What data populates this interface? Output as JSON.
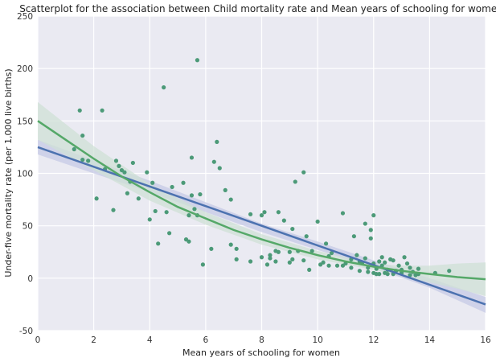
{
  "chart_data": {
    "type": "scatter",
    "title": "Scatterplot for the association between Child mortality rate and Mean years of schooling for women",
    "xlabel": "Mean years of schooling for women",
    "ylabel": "Under-five mortality rate (per 1,000 live births)",
    "xlim": [
      0,
      16
    ],
    "ylim": [
      -50,
      250
    ],
    "x_ticks": [
      0,
      2,
      4,
      6,
      8,
      10,
      12,
      14,
      16
    ],
    "y_ticks": [
      -50,
      0,
      50,
      100,
      150,
      200,
      250
    ],
    "grid": true,
    "colors": {
      "background": "#eaeaf2",
      "grid": "#ffffff",
      "points": "#4c9a78",
      "linear_fit": "#4c72b0",
      "linear_band": "#c8cce6",
      "quadratic_fit": "#55a868",
      "quadratic_band": "#cfe0d6"
    },
    "points": [
      [
        1.3,
        123
      ],
      [
        1.5,
        160
      ],
      [
        1.6,
        136
      ],
      [
        1.6,
        113
      ],
      [
        1.8,
        112
      ],
      [
        2.1,
        76
      ],
      [
        2.3,
        160
      ],
      [
        2.4,
        104
      ],
      [
        2.7,
        65
      ],
      [
        2.8,
        112
      ],
      [
        2.9,
        107
      ],
      [
        3.0,
        103
      ],
      [
        3.1,
        101
      ],
      [
        3.2,
        81
      ],
      [
        3.3,
        92
      ],
      [
        3.4,
        110
      ],
      [
        3.6,
        76
      ],
      [
        3.9,
        101
      ],
      [
        4.0,
        56
      ],
      [
        4.1,
        91
      ],
      [
        4.2,
        64
      ],
      [
        4.3,
        33
      ],
      [
        4.5,
        182
      ],
      [
        4.6,
        63
      ],
      [
        4.7,
        43
      ],
      [
        4.8,
        87
      ],
      [
        5.2,
        91
      ],
      [
        5.3,
        37
      ],
      [
        5.4,
        35
      ],
      [
        5.4,
        60
      ],
      [
        5.5,
        115
      ],
      [
        5.5,
        79
      ],
      [
        5.6,
        66
      ],
      [
        5.7,
        208
      ],
      [
        5.7,
        60
      ],
      [
        5.8,
        80
      ],
      [
        5.9,
        13
      ],
      [
        6.2,
        28
      ],
      [
        6.3,
        111
      ],
      [
        6.4,
        130
      ],
      [
        6.5,
        105
      ],
      [
        6.7,
        84
      ],
      [
        6.9,
        32
      ],
      [
        6.9,
        75
      ],
      [
        7.1,
        28
      ],
      [
        7.1,
        18
      ],
      [
        7.6,
        61
      ],
      [
        7.6,
        16
      ],
      [
        8.0,
        20
      ],
      [
        8.0,
        60
      ],
      [
        8.1,
        63
      ],
      [
        8.2,
        13
      ],
      [
        8.3,
        19
      ],
      [
        8.3,
        22
      ],
      [
        8.5,
        26
      ],
      [
        8.5,
        16
      ],
      [
        8.6,
        63
      ],
      [
        8.8,
        55
      ],
      [
        9.0,
        15
      ],
      [
        9.1,
        18
      ],
      [
        9.1,
        47
      ],
      [
        9.2,
        92
      ],
      [
        9.3,
        26
      ],
      [
        9.5,
        17
      ],
      [
        9.5,
        101
      ],
      [
        9.6,
        40
      ],
      [
        9.7,
        8
      ],
      [
        9.8,
        26
      ],
      [
        10.0,
        54
      ],
      [
        10.2,
        15
      ],
      [
        10.3,
        33
      ],
      [
        10.4,
        21
      ],
      [
        10.5,
        24
      ],
      [
        10.7,
        12
      ],
      [
        10.9,
        62
      ],
      [
        10.9,
        12
      ],
      [
        11.0,
        14
      ],
      [
        11.2,
        18
      ],
      [
        11.3,
        40
      ],
      [
        11.4,
        22
      ],
      [
        11.5,
        16
      ],
      [
        11.6,
        15
      ],
      [
        11.7,
        19
      ],
      [
        11.7,
        52
      ],
      [
        11.8,
        10
      ],
      [
        11.9,
        46
      ],
      [
        11.9,
        38
      ],
      [
        12.0,
        60
      ],
      [
        12.0,
        14
      ],
      [
        12.1,
        9
      ],
      [
        12.2,
        16
      ],
      [
        12.3,
        12
      ],
      [
        12.3,
        20
      ],
      [
        12.4,
        5
      ],
      [
        12.5,
        8
      ],
      [
        12.6,
        18
      ],
      [
        12.7,
        17
      ],
      [
        12.8,
        7
      ],
      [
        12.9,
        12
      ],
      [
        13.0,
        5
      ],
      [
        13.1,
        20
      ],
      [
        13.2,
        14
      ],
      [
        13.3,
        10
      ],
      [
        13.4,
        6
      ],
      [
        13.5,
        3
      ],
      [
        13.6,
        4
      ],
      [
        14.2,
        5
      ],
      [
        14.7,
        7
      ],
      [
        11.8,
        6
      ],
      [
        12.0,
        5
      ],
      [
        12.2,
        4
      ],
      [
        12.5,
        4
      ],
      [
        12.7,
        4
      ],
      [
        13.3,
        3
      ],
      [
        10.4,
        12
      ],
      [
        10.1,
        13
      ],
      [
        9.0,
        25
      ],
      [
        8.6,
        25
      ],
      [
        11.2,
        10
      ],
      [
        11.5,
        7
      ],
      [
        12.1,
        4
      ],
      [
        12.4,
        15
      ],
      [
        13.0,
        8
      ],
      [
        13.6,
        9
      ]
    ],
    "linear_fit": {
      "line": [
        [
          0,
          125
        ],
        [
          16,
          -25
        ]
      ],
      "band_upper": [
        [
          0,
          132
        ],
        [
          4,
          93
        ],
        [
          8,
          52
        ],
        [
          10,
          35
        ],
        [
          12,
          17
        ],
        [
          14,
          0
        ],
        [
          16,
          -18
        ]
      ],
      "band_lower": [
        [
          0,
          118
        ],
        [
          4,
          82
        ],
        [
          8,
          44
        ],
        [
          10,
          27
        ],
        [
          12,
          10
        ],
        [
          14,
          -9
        ],
        [
          16,
          -33
        ]
      ]
    },
    "quadratic_fit": {
      "curve": [
        [
          0,
          150
        ],
        [
          1,
          132
        ],
        [
          2,
          114
        ],
        [
          3,
          97
        ],
        [
          4,
          82
        ],
        [
          5,
          68
        ],
        [
          6,
          57
        ],
        [
          7,
          46
        ],
        [
          8,
          37
        ],
        [
          9,
          29
        ],
        [
          10,
          22
        ],
        [
          11,
          16
        ],
        [
          12,
          11
        ],
        [
          13,
          7
        ],
        [
          14,
          4
        ],
        [
          15,
          1
        ],
        [
          16,
          -1
        ]
      ],
      "band_upper": [
        [
          0,
          168
        ],
        [
          2,
          126
        ],
        [
          4,
          90
        ],
        [
          6,
          63
        ],
        [
          8,
          42
        ],
        [
          10,
          26
        ],
        [
          12,
          14
        ],
        [
          13,
          12
        ],
        [
          14,
          12
        ],
        [
          15,
          14
        ],
        [
          16,
          15
        ]
      ],
      "band_lower": [
        [
          0,
          132
        ],
        [
          2,
          103
        ],
        [
          4,
          74
        ],
        [
          6,
          51
        ],
        [
          8,
          32
        ],
        [
          10,
          18
        ],
        [
          12,
          8
        ],
        [
          13,
          2
        ],
        [
          14,
          -4
        ],
        [
          15,
          -10
        ],
        [
          16,
          -17
        ]
      ]
    }
  }
}
